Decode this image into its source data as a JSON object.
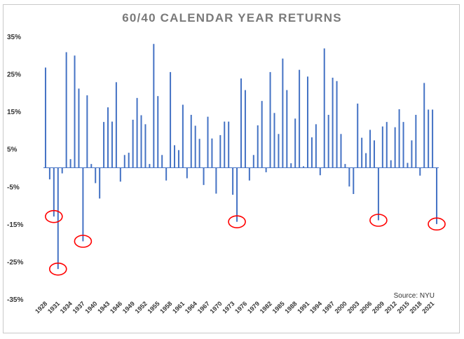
{
  "chart_data": {
    "type": "bar",
    "title": "60/40 CALENDAR YEAR RETURNS",
    "source_note": "Source: NYU",
    "ylim": [
      -35,
      35
    ],
    "y_ticks": [
      "35%",
      "25%",
      "15%",
      "5%",
      "-5%",
      "-15%",
      "-25%",
      "-35%"
    ],
    "y_tick_values": [
      35,
      25,
      15,
      5,
      -5,
      -15,
      -25,
      -35
    ],
    "x_tick_labels": [
      "1928",
      "1931",
      "1934",
      "1937",
      "1940",
      "1943",
      "1946",
      "1949",
      "1952",
      "1955",
      "1958",
      "1961",
      "1964",
      "1967",
      "1970",
      "1973",
      "1976",
      "1979",
      "1982",
      "1985",
      "1988",
      "1991",
      "1994",
      "1997",
      "2000",
      "2003",
      "2006",
      "2009",
      "2012",
      "2015",
      "2018",
      "2021"
    ],
    "start_year": 1928,
    "values": [
      26.7,
      -3.1,
      -13.0,
      -27.0,
      -1.5,
      30.8,
      2.3,
      29.9,
      21.1,
      -19.6,
      19.3,
      1.0,
      -4.1,
      -8.2,
      12.2,
      16.1,
      12.3,
      22.8,
      -3.7,
      3.4,
      4.0,
      12.8,
      18.6,
      14.0,
      11.6,
      1.0,
      33.0,
      19.1,
      3.4,
      -3.4,
      25.5,
      6.0,
      4.7,
      16.8,
      -2.8,
      14.1,
      11.2,
      7.7,
      -4.6,
      13.6,
      7.8,
      -6.9,
      8.7,
      12.3,
      12.3,
      -7.2,
      -14.4,
      23.8,
      20.7,
      -3.4,
      3.4,
      11.3,
      17.8,
      -1.2,
      25.5,
      14.6,
      9.0,
      29.1,
      20.7,
      1.2,
      13.1,
      26.1,
      0.4,
      24.3,
      8.1,
      11.6,
      -2.0,
      31.8,
      14.1,
      24.0,
      23.1,
      9.0,
      1.0,
      -5.0,
      -7.0,
      17.1,
      8.0,
      3.9,
      10.1,
      7.3,
      -14.0,
      11.0,
      12.2,
      2.0,
      10.8,
      15.6,
      12.2,
      1.3,
      7.3,
      14.1,
      -2.1,
      22.6,
      15.5,
      15.5,
      -15.0
    ],
    "bar_color": "#4472c4",
    "highlight_color": "#ff0000",
    "highlighted_years": [
      1930,
      1931,
      1937,
      1974,
      2008,
      2022
    ],
    "grid": false
  }
}
